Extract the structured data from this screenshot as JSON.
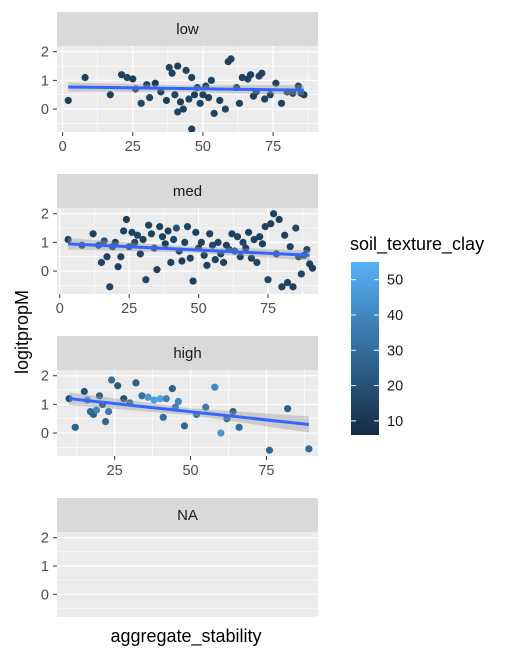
{
  "chart_data": {
    "type": "scatter",
    "xlabel": "aggregate_stability",
    "ylabel": "logitpropM",
    "color_variable": "soil_texture_clay",
    "legend": {
      "title": "soil_texture_clay",
      "placement": "right",
      "ticks": [
        "10",
        "20",
        "30",
        "40",
        "50"
      ],
      "tick_values": [
        10,
        20,
        30,
        40,
        50
      ],
      "range": [
        6,
        55
      ],
      "low_color": "#132B43",
      "high_color": "#56B1F7"
    },
    "colors": {
      "panel_bg": "#EBEBEB",
      "strip_bg": "#D9D9D9",
      "grid_major": "#FFFFFF",
      "smooth_line": "#3366FF",
      "ribbon": "#999999"
    },
    "ylim": [
      -0.8,
      2.2
    ],
    "y_ticks": [
      "0",
      "1",
      "2"
    ],
    "y_tick_values": [
      0,
      1,
      2
    ],
    "panels": [
      {
        "strip": "low",
        "xlim": [
          -2,
          91
        ],
        "x_ticks": [
          "0",
          "25",
          "50",
          "75"
        ],
        "x_tick_values": [
          0,
          25,
          50,
          75
        ],
        "smooth": {
          "x": [
            2,
            86
          ],
          "y": [
            0.77,
            0.66
          ],
          "se_halfwidth": [
            0.16,
            0.11,
            0.18
          ]
        },
        "points": [
          [
            2,
            0.3,
            14
          ],
          [
            8,
            1.1,
            14
          ],
          [
            17,
            0.5,
            15
          ],
          [
            21,
            1.2,
            14
          ],
          [
            23,
            1.1,
            15
          ],
          [
            25,
            1.05,
            13
          ],
          [
            26,
            0.7,
            16
          ],
          [
            28,
            0.2,
            16
          ],
          [
            30,
            0.85,
            14
          ],
          [
            31,
            0.4,
            15
          ],
          [
            33,
            0.9,
            12
          ],
          [
            35,
            0.6,
            12
          ],
          [
            37,
            0.3,
            14
          ],
          [
            38,
            1.45,
            15
          ],
          [
            39,
            1.25,
            14
          ],
          [
            40,
            0.5,
            15
          ],
          [
            41,
            1.5,
            14
          ],
          [
            41,
            -0.1,
            16
          ],
          [
            42,
            0.25,
            14
          ],
          [
            43,
            0.0,
            13
          ],
          [
            44,
            1.35,
            15
          ],
          [
            45,
            0.35,
            15
          ],
          [
            46,
            1.1,
            14
          ],
          [
            47,
            0.5,
            13
          ],
          [
            48,
            0.75,
            13
          ],
          [
            49,
            0.2,
            15
          ],
          [
            50,
            0.5,
            14
          ],
          [
            51,
            0.8,
            14
          ],
          [
            52,
            0.4,
            14
          ],
          [
            53,
            1.0,
            15
          ],
          [
            54,
            -0.15,
            14
          ],
          [
            56,
            0.3,
            14
          ],
          [
            58,
            0.0,
            16
          ],
          [
            59,
            1.65,
            14
          ],
          [
            60,
            1.75,
            14
          ],
          [
            62,
            0.75,
            15
          ],
          [
            63,
            0.2,
            14
          ],
          [
            64,
            1.1,
            15
          ],
          [
            66,
            1.05,
            14
          ],
          [
            67,
            1.2,
            14
          ],
          [
            68,
            0.45,
            14
          ],
          [
            69,
            0.6,
            13
          ],
          [
            70,
            1.15,
            15
          ],
          [
            71,
            1.25,
            14
          ],
          [
            72,
            0.35,
            14
          ],
          [
            74,
            0.5,
            14
          ],
          [
            76,
            0.9,
            15
          ],
          [
            78,
            0.2,
            14
          ],
          [
            80,
            0.6,
            14
          ],
          [
            82,
            0.55,
            14
          ],
          [
            84,
            0.8,
            15
          ],
          [
            85,
            0.55,
            14
          ],
          [
            86,
            0.5,
            14
          ],
          [
            46,
            -0.7,
            14
          ]
        ]
      },
      {
        "strip": "med",
        "xlim": [
          -1,
          93
        ],
        "x_ticks": [
          "0",
          "25",
          "50",
          "75"
        ],
        "x_tick_values": [
          0,
          25,
          50,
          75
        ],
        "smooth": {
          "x": [
            3,
            90
          ],
          "y": [
            0.95,
            0.55
          ],
          "se_halfwidth": [
            0.2,
            0.1,
            0.18
          ]
        },
        "points": [
          [
            3,
            1.1,
            14
          ],
          [
            8,
            0.9,
            15
          ],
          [
            12,
            1.3,
            14
          ],
          [
            14,
            0.9,
            15
          ],
          [
            15,
            0.3,
            16
          ],
          [
            16,
            1.05,
            20
          ],
          [
            17,
            0.5,
            14
          ],
          [
            18,
            -0.55,
            15
          ],
          [
            19,
            0.85,
            15
          ],
          [
            20,
            1.0,
            13
          ],
          [
            21,
            0.15,
            14
          ],
          [
            22,
            0.5,
            14
          ],
          [
            23,
            1.4,
            14
          ],
          [
            24,
            1.8,
            13
          ],
          [
            25,
            0.85,
            16
          ],
          [
            26,
            1.35,
            14
          ],
          [
            27,
            1.0,
            15
          ],
          [
            28,
            1.25,
            16
          ],
          [
            29,
            0.6,
            15
          ],
          [
            30,
            1.1,
            14
          ],
          [
            31,
            -0.3,
            16
          ],
          [
            32,
            1.6,
            15
          ],
          [
            33,
            1.3,
            14
          ],
          [
            34,
            0.8,
            14
          ],
          [
            35,
            0.05,
            14
          ],
          [
            36,
            1.55,
            15
          ],
          [
            37,
            1.2,
            14
          ],
          [
            38,
            0.95,
            13
          ],
          [
            39,
            1.4,
            14
          ],
          [
            40,
            0.3,
            15
          ],
          [
            41,
            1.1,
            15
          ],
          [
            42,
            1.5,
            20
          ],
          [
            43,
            0.7,
            14
          ],
          [
            44,
            0.35,
            14
          ],
          [
            45,
            1.0,
            15
          ],
          [
            46,
            1.55,
            15
          ],
          [
            47,
            0.45,
            14
          ],
          [
            48,
            -0.35,
            14
          ],
          [
            49,
            1.35,
            14
          ],
          [
            50,
            0.8,
            14
          ],
          [
            51,
            1.0,
            14
          ],
          [
            52,
            0.55,
            15
          ],
          [
            53,
            0.2,
            13
          ],
          [
            54,
            1.3,
            14
          ],
          [
            55,
            0.9,
            16
          ],
          [
            56,
            0.4,
            14
          ],
          [
            57,
            1.0,
            14
          ],
          [
            58,
            0.6,
            14
          ],
          [
            59,
            0.3,
            15
          ],
          [
            60,
            0.9,
            14
          ],
          [
            61,
            0.75,
            14
          ],
          [
            62,
            1.3,
            14
          ],
          [
            63,
            0.7,
            16
          ],
          [
            64,
            1.2,
            15
          ],
          [
            65,
            0.5,
            14
          ],
          [
            66,
            1.0,
            16
          ],
          [
            67,
            0.8,
            14
          ],
          [
            68,
            1.35,
            14
          ],
          [
            69,
            0.45,
            15
          ],
          [
            70,
            1.1,
            14
          ],
          [
            71,
            0.3,
            15
          ],
          [
            72,
            1.2,
            14
          ],
          [
            73,
            0.95,
            14
          ],
          [
            74,
            1.55,
            15
          ],
          [
            75,
            -0.3,
            16
          ],
          [
            76,
            1.65,
            14
          ],
          [
            77,
            2.0,
            14
          ],
          [
            78,
            0.6,
            14
          ],
          [
            79,
            1.8,
            14
          ],
          [
            80,
            -0.55,
            14
          ],
          [
            81,
            1.25,
            14
          ],
          [
            82,
            -0.4,
            15
          ],
          [
            83,
            0.85,
            14
          ],
          [
            84,
            -0.55,
            14
          ],
          [
            85,
            1.5,
            16
          ],
          [
            86,
            0.5,
            14
          ],
          [
            87,
            -0.1,
            15
          ],
          [
            88,
            0.55,
            14
          ],
          [
            89,
            0.75,
            15
          ],
          [
            90,
            0.25,
            14
          ],
          [
            91,
            0.1,
            14
          ]
        ]
      },
      {
        "strip": "high",
        "xlim": [
          6,
          92
        ],
        "x_ticks": [
          "25",
          "50",
          "75"
        ],
        "x_tick_values": [
          25,
          50,
          75
        ],
        "smooth": {
          "x": [
            10,
            89
          ],
          "y": [
            1.2,
            0.3
          ],
          "se_halfwidth": [
            0.22,
            0.12,
            0.28
          ]
        },
        "points": [
          [
            10,
            1.2,
            18
          ],
          [
            12,
            0.2,
            25
          ],
          [
            15,
            1.45,
            20
          ],
          [
            16,
            1.15,
            42
          ],
          [
            17,
            0.75,
            30
          ],
          [
            18,
            0.65,
            27
          ],
          [
            19,
            0.8,
            38
          ],
          [
            20,
            1.3,
            25
          ],
          [
            21,
            1.0,
            18
          ],
          [
            22,
            0.4,
            28
          ],
          [
            23,
            0.75,
            35
          ],
          [
            24,
            1.85,
            30
          ],
          [
            26,
            1.65,
            22
          ],
          [
            28,
            1.2,
            18
          ],
          [
            30,
            1.05,
            30
          ],
          [
            32,
            1.75,
            25
          ],
          [
            34,
            1.3,
            30
          ],
          [
            36,
            1.25,
            45
          ],
          [
            38,
            1.15,
            48
          ],
          [
            40,
            1.2,
            50
          ],
          [
            41,
            0.55,
            30
          ],
          [
            42,
            1.2,
            38
          ],
          [
            44,
            1.55,
            25
          ],
          [
            45,
            0.9,
            35
          ],
          [
            46,
            1.1,
            40
          ],
          [
            48,
            0.25,
            28
          ],
          [
            52,
            0.65,
            30
          ],
          [
            55,
            0.9,
            35
          ],
          [
            58,
            1.6,
            40
          ],
          [
            60,
            0.0,
            45
          ],
          [
            62,
            0.5,
            30
          ],
          [
            64,
            0.75,
            25
          ],
          [
            66,
            0.2,
            30
          ],
          [
            76,
            -0.6,
            28
          ],
          [
            82,
            0.85,
            25
          ],
          [
            89,
            -0.55,
            30
          ]
        ]
      },
      {
        "strip": "NA",
        "xlim": [
          6,
          92
        ],
        "x_ticks": [],
        "x_tick_values": [],
        "smooth": null,
        "points": []
      }
    ]
  }
}
